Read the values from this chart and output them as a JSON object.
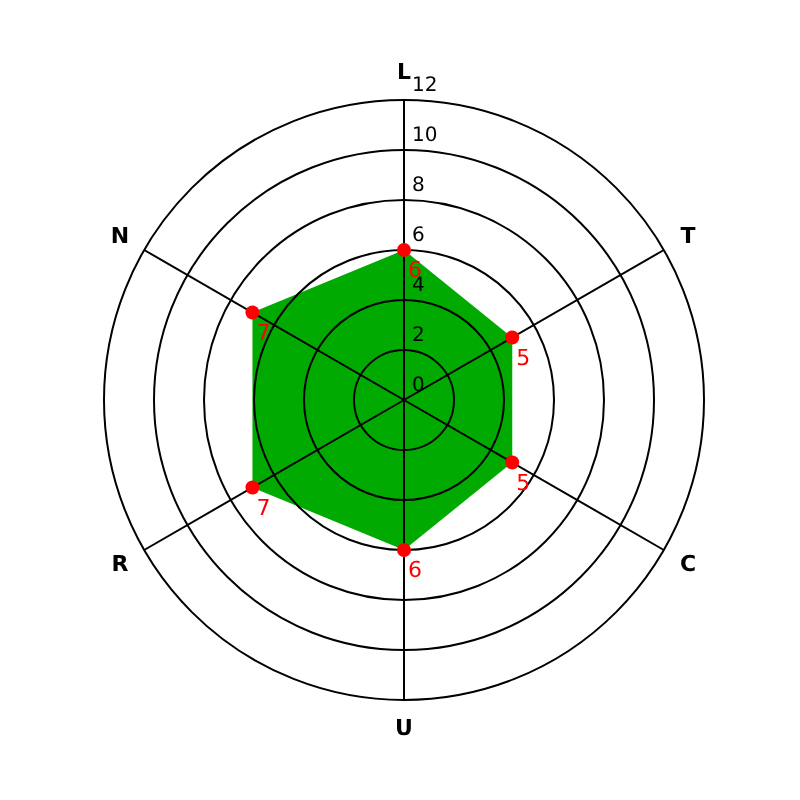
{
  "chart_data": {
    "type": "radar",
    "categories": [
      "L",
      "T",
      "C",
      "U",
      "R",
      "N"
    ],
    "series": [
      {
        "color": "#00aa00",
        "values": [
          6,
          5,
          5,
          6,
          7,
          7
        ]
      }
    ],
    "ylim": [
      0,
      12
    ],
    "yticks": [
      0,
      2,
      4,
      6,
      8,
      10,
      12
    ],
    "grid": true,
    "marker": "circle",
    "data_labels": true
  }
}
